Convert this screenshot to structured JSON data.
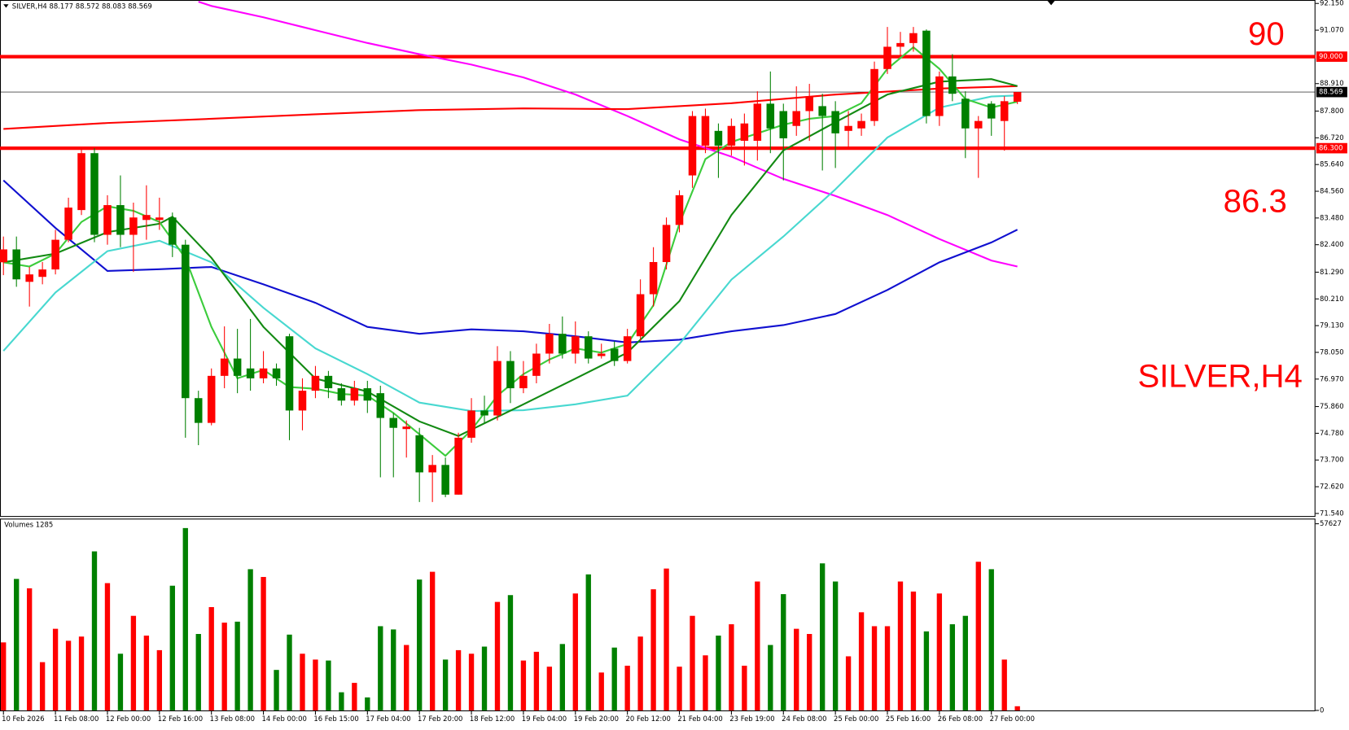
{
  "chart_data": {
    "type": "candlestick",
    "title": "SILVER,H4",
    "categories": [
      "10 Feb 2026",
      null,
      null,
      null,
      "11 Feb 08:00",
      null,
      null,
      null,
      "12 Feb 00:00",
      null,
      null,
      null,
      "12 Feb 16:00",
      null,
      null,
      null,
      "13 Feb 08:00",
      null,
      null,
      null,
      "14 Feb 00:00",
      null,
      null,
      null,
      "16 Feb 15:00",
      null,
      null,
      null,
      "17 Feb 04:00",
      null,
      null,
      null,
      "17 Feb 20:00",
      null,
      null,
      null,
      "18 Feb 12:00",
      null,
      null,
      null,
      "19 Feb 04:00",
      null,
      null,
      null,
      "19 Feb 20:00",
      null,
      null,
      null,
      "20 Feb 12:00",
      null,
      null,
      null,
      "21 Feb 04:00",
      null,
      null,
      null,
      "23 Feb 19:00",
      null,
      null,
      null,
      "24 Feb 08:00",
      null,
      null,
      null,
      "25 Feb 00:00",
      null,
      null,
      null,
      "25 Feb 16:00",
      null,
      null,
      null,
      "26 Feb 08:00",
      null,
      null,
      null,
      "27 Feb 00:00",
      null,
      null
    ],
    "open": [
      81.69,
      82.21,
      80.9,
      81.1,
      81.4,
      82.6,
      83.8,
      86.1,
      82.8,
      84.0,
      82.8,
      83.4,
      83.4,
      83.5,
      82.4,
      76.2,
      75.2,
      77.1,
      77.8,
      77.4,
      77.0,
      77.4,
      78.7,
      75.7,
      76.5,
      77.1,
      76.6,
      76.1,
      76.6,
      76.4,
      75.4,
      74.95,
      74.7,
      73.2,
      73.5,
      72.3,
      74.6,
      75.7,
      75.5,
      77.7,
      76.6,
      77.1,
      78.0,
      78.8,
      78.0,
      78.7,
      77.9,
      78.2,
      77.7,
      78.7,
      80.4,
      81.7,
      83.2,
      85.2,
      86.4,
      87.0,
      86.4,
      86.6,
      86.6,
      88.1,
      87.8,
      87.2,
      87.8,
      88.0,
      87.8,
      87.0,
      87.1,
      87.4,
      89.5,
      90.4,
      90.55,
      91.05,
      87.6,
      89.2,
      88.3,
      87.1,
      88.1,
      87.4,
      88.177
    ],
    "high": [
      82.73,
      82.73,
      81.5,
      81.7,
      83.0,
      84.3,
      86.3,
      86.3,
      84.4,
      85.2,
      84.1,
      84.8,
      84.3,
      83.7,
      82.6,
      76.5,
      77.4,
      79.1,
      79.0,
      79.4,
      78.1,
      77.6,
      78.8,
      77.0,
      77.5,
      77.3,
      76.8,
      76.9,
      76.9,
      76.7,
      75.6,
      75.3,
      75.0,
      73.9,
      73.8,
      74.8,
      76.2,
      76.3,
      78.3,
      78.1,
      77.7,
      78.4,
      79.2,
      79.5,
      79.3,
      78.9,
      78.4,
      78.5,
      79.0,
      81.0,
      82.3,
      83.5,
      84.6,
      87.8,
      87.9,
      87.3,
      87.5,
      87.7,
      88.6,
      89.4,
      88.1,
      88.8,
      88.9,
      88.5,
      88.2,
      87.8,
      87.7,
      89.8,
      91.2,
      91.0,
      91.2,
      91.1,
      89.4,
      90.1,
      88.6,
      87.6,
      88.2,
      88.4,
      88.572
    ],
    "low": [
      81.17,
      80.7,
      79.9,
      80.8,
      81.2,
      82.5,
      83.6,
      82.5,
      82.4,
      82.3,
      81.3,
      82.6,
      83.0,
      81.9,
      74.6,
      74.3,
      75.1,
      76.6,
      76.4,
      76.5,
      76.8,
      76.7,
      74.5,
      74.9,
      76.2,
      76.2,
      75.9,
      75.9,
      75.6,
      73.0,
      73.0,
      73.8,
      72.0,
      72.0,
      72.2,
      72.3,
      74.4,
      75.2,
      75.3,
      76.0,
      76.4,
      76.8,
      77.6,
      77.8,
      77.6,
      77.6,
      77.8,
      77.5,
      77.6,
      78.5,
      79.9,
      81.4,
      82.9,
      84.7,
      86.1,
      85.1,
      86.0,
      85.6,
      85.8,
      86.1,
      85.0,
      86.8,
      86.6,
      85.4,
      85.5,
      86.3,
      86.8,
      87.2,
      89.3,
      90.0,
      90.2,
      87.3,
      87.2,
      88.2,
      85.9,
      85.1,
      86.8,
      86.2,
      88.083
    ],
    "close": [
      82.21,
      81.0,
      81.2,
      81.4,
      82.6,
      83.9,
      86.1,
      82.8,
      84.0,
      82.8,
      83.5,
      83.6,
      83.5,
      82.4,
      76.2,
      75.2,
      77.1,
      77.8,
      77.1,
      77.0,
      77.4,
      77.0,
      75.7,
      76.5,
      77.1,
      76.6,
      76.1,
      76.6,
      76.1,
      75.4,
      75.0,
      75.05,
      73.2,
      73.5,
      72.3,
      74.6,
      75.7,
      75.5,
      77.7,
      76.6,
      77.1,
      78.0,
      78.8,
      78.0,
      78.7,
      77.8,
      78.0,
      77.7,
      78.7,
      80.4,
      81.7,
      83.2,
      84.4,
      87.6,
      87.6,
      86.4,
      87.2,
      87.3,
      88.1,
      87.1,
      86.7,
      87.8,
      88.4,
      87.6,
      86.9,
      87.2,
      87.4,
      89.5,
      90.4,
      90.55,
      90.95,
      87.6,
      89.2,
      88.5,
      87.1,
      87.4,
      87.5,
      88.2,
      88.569
    ],
    "up_color": "#ff0000",
    "down_color": "#008000",
    "ylim": [
      71.54,
      92.15
    ],
    "yticks": [
      {
        "value": 92.15,
        "label": "92.150"
      },
      {
        "value": 91.07,
        "label": "91.070"
      },
      {
        "value": 88.91,
        "label": "88.910"
      },
      {
        "value": 87.8,
        "label": "87.800"
      },
      {
        "value": 86.72,
        "label": "86.720"
      },
      {
        "value": 85.64,
        "label": "85.640"
      },
      {
        "value": 84.56,
        "label": "84.560"
      },
      {
        "value": 83.48,
        "label": "83.480"
      },
      {
        "value": 82.4,
        "label": "82.400"
      },
      {
        "value": 81.29,
        "label": "81.290"
      },
      {
        "value": 80.21,
        "label": "80.210"
      },
      {
        "value": 79.13,
        "label": "79.130"
      },
      {
        "value": 78.05,
        "label": "78.050"
      },
      {
        "value": 76.97,
        "label": "76.970"
      },
      {
        "value": 75.86,
        "label": "75.860"
      },
      {
        "value": 74.78,
        "label": "74.780"
      },
      {
        "value": 73.7,
        "label": "73.700"
      },
      {
        "value": 72.62,
        "label": "72.620"
      },
      {
        "value": 71.54,
        "label": "71.540"
      }
    ],
    "levels": [
      {
        "value": 90,
        "label": "90.000",
        "color": "#ff0000"
      },
      {
        "value": 86.3,
        "label": "86.300",
        "color": "#ff0000"
      }
    ],
    "indicators": [
      {
        "color": "#ff00ff",
        "x": [
          15,
          16,
          20,
          24,
          28,
          32,
          36,
          40,
          44,
          48,
          52,
          56,
          60,
          64,
          68,
          72,
          76,
          78
        ],
        "values": [
          92.22,
          92.05,
          91.59,
          91.07,
          90.55,
          90.1,
          89.68,
          89.16,
          88.47,
          87.6,
          86.66,
          85.96,
          85.06,
          84.37,
          83.6,
          82.63,
          81.76,
          81.52
        ]
      },
      {
        "color": "#ff0000",
        "x": [
          0,
          8,
          16,
          24,
          32,
          40,
          48,
          56,
          64,
          72,
          78
        ],
        "values": [
          87.08,
          87.32,
          87.49,
          87.67,
          87.84,
          87.91,
          87.88,
          88.12,
          88.47,
          88.71,
          88.81
        ]
      },
      {
        "color": "#1010d0",
        "x": [
          0,
          4,
          8,
          12,
          16,
          20,
          24,
          28,
          32,
          36,
          40,
          44,
          48,
          52,
          56,
          60,
          64,
          68,
          72,
          76,
          78
        ],
        "values": [
          85.0,
          83.08,
          81.34,
          81.41,
          81.5,
          80.8,
          80.05,
          79.08,
          78.8,
          78.98,
          78.9,
          78.7,
          78.45,
          78.56,
          78.9,
          79.15,
          79.6,
          80.57,
          81.69,
          82.49,
          83.01
        ]
      },
      {
        "color": "#48d8d0",
        "x": [
          0,
          4,
          8,
          12,
          16,
          20,
          24,
          28,
          32,
          36,
          40,
          44,
          48,
          52,
          56,
          60,
          64,
          68,
          72,
          76,
          78
        ],
        "values": [
          78.11,
          80.47,
          82.14,
          82.56,
          81.69,
          79.85,
          78.21,
          77.17,
          76.02,
          75.68,
          75.71,
          75.95,
          76.3,
          78.39,
          80.99,
          82.73,
          84.64,
          86.73,
          87.94,
          88.39,
          88.43
        ]
      },
      {
        "color": "#138a13",
        "x": [
          0,
          4,
          8,
          12,
          13,
          16,
          20,
          24,
          28,
          32,
          35,
          40,
          44,
          48,
          52,
          56,
          60,
          64,
          68,
          72,
          76,
          78
        ],
        "values": [
          81.69,
          82.04,
          82.91,
          83.25,
          83.53,
          81.87,
          79.08,
          76.99,
          76.47,
          75.26,
          74.67,
          75.95,
          76.99,
          78.04,
          80.12,
          83.6,
          86.21,
          87.35,
          88.47,
          88.99,
          89.09,
          88.81
        ]
      },
      {
        "color": "#3ccc3c",
        "x": [
          0,
          2,
          4,
          6,
          8,
          10,
          12,
          14,
          16,
          18,
          20,
          22,
          24,
          26,
          28,
          30,
          32,
          34,
          36,
          38,
          40,
          42,
          44,
          46,
          48,
          50,
          52,
          54,
          56,
          58,
          60,
          62,
          64,
          66,
          68,
          70,
          72,
          74,
          76,
          78
        ],
        "values": [
          81.69,
          81.52,
          82.04,
          83.32,
          83.95,
          83.77,
          83.32,
          81.86,
          79.08,
          77.0,
          77.34,
          76.65,
          76.58,
          76.37,
          76.3,
          75.6,
          74.74,
          73.87,
          74.91,
          76.3,
          77.17,
          77.76,
          78.21,
          78.04,
          78.39,
          79.95,
          83.25,
          85.86,
          86.55,
          86.9,
          87.25,
          87.49,
          87.6,
          88.12,
          89.51,
          90.38,
          89.51,
          88.29,
          87.94,
          88.18
        ]
      }
    ],
    "volume": {
      "label": "Volumes",
      "ylim": [
        0,
        57627
      ],
      "yticks": [
        57627,
        0
      ],
      "values": [
        21000,
        40600,
        37700,
        14900,
        25200,
        21500,
        22800,
        49100,
        39300,
        17500,
        29200,
        23100,
        18600,
        38500,
        56300,
        23600,
        31900,
        27100,
        27400,
        43600,
        41200,
        12500,
        23400,
        17500,
        15700,
        15400,
        5600,
        8500,
        4000,
        26000,
        25000,
        20200,
        40400,
        42800,
        15700,
        18600,
        17500,
        19700,
        33500,
        35600,
        15400,
        18100,
        13500,
        20500,
        36100,
        42000,
        11700,
        19400,
        13800,
        22800,
        37400,
        43800,
        13500,
        29200,
        17000,
        23100,
        26600,
        13800,
        39800,
        20200,
        35900,
        25200,
        23600,
        45400,
        39800,
        16700,
        30300,
        26000,
        26000,
        39800,
        36700,
        24400,
        36100,
        26600,
        29200,
        45900,
        43600,
        15700,
        1285
      ]
    }
  }
}
